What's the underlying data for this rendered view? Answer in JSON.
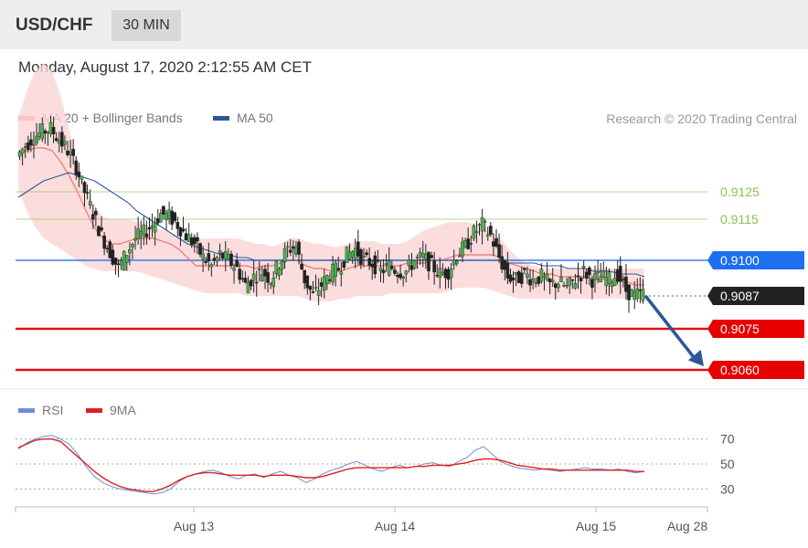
{
  "header": {
    "symbol": "USD/CHF",
    "interval": "30 MIN"
  },
  "datetime": "Monday, August 17, 2020 2:12:55 AM CET",
  "legend_price": [
    {
      "label": "MA 20 + Bollinger Bands",
      "color": "#f08080"
    },
    {
      "label": "MA 50",
      "color": "#2b5797"
    }
  ],
  "credit": "Research © 2020 Trading Central",
  "legend_rsi": [
    {
      "label": "RSI",
      "color": "#6a8fd8"
    },
    {
      "label": "9MA",
      "color": "#e02020"
    }
  ],
  "chart_data": [
    {
      "type": "candlestick",
      "title": "USD/CHF",
      "ylim": [
        0.9055,
        0.9145
      ],
      "grid": false,
      "xticks": [
        "Aug 13",
        "Aug 14",
        "Aug 15",
        "Aug 28"
      ],
      "current_price": "0.9087",
      "levels": [
        {
          "value": 0.9125,
          "label": "0.9125",
          "color": "#8cc152",
          "style": "resistance"
        },
        {
          "value": 0.9115,
          "label": "0.9115",
          "color": "#8cc152",
          "style": "resistance"
        },
        {
          "value": 0.91,
          "label": "0.9100",
          "color": "#3a7bea",
          "style": "pivot"
        },
        {
          "value": 0.9075,
          "label": "0.9075",
          "color": "#e01010",
          "style": "support"
        },
        {
          "value": 0.906,
          "label": "0.9060",
          "color": "#e01010",
          "style": "support"
        }
      ],
      "close_path": [
        0.9138,
        0.9142,
        0.9145,
        0.9147,
        0.9148,
        0.9144,
        0.914,
        0.9134,
        0.9125,
        0.9117,
        0.9109,
        0.9103,
        0.9097,
        0.9103,
        0.9108,
        0.911,
        0.9113,
        0.9117,
        0.9116,
        0.9113,
        0.9109,
        0.9106,
        0.9101,
        0.9098,
        0.9102,
        0.91,
        0.9097,
        0.9091,
        0.9094,
        0.9096,
        0.9093,
        0.9099,
        0.9104,
        0.9105,
        0.9093,
        0.9087,
        0.9091,
        0.9095,
        0.9097,
        0.9102,
        0.9104,
        0.91,
        0.9099,
        0.9096,
        0.9098,
        0.9096,
        0.9096,
        0.91,
        0.9101,
        0.9098,
        0.9095,
        0.9096,
        0.9102,
        0.9105,
        0.911,
        0.9113,
        0.9109,
        0.9101,
        0.9094,
        0.9093,
        0.9095,
        0.9093,
        0.9094,
        0.9091,
        0.9092,
        0.909,
        0.9093,
        0.9096,
        0.9093,
        0.9094,
        0.9093,
        0.9095,
        0.9089,
        0.9087,
        0.9088
      ],
      "ma20": [
        0.9139,
        0.914,
        0.9141,
        0.9141,
        0.914,
        0.9136,
        0.9131,
        0.9125,
        0.9118,
        0.9112,
        0.9108,
        0.9106,
        0.9106,
        0.9107,
        0.9108,
        0.9108,
        0.9108,
        0.9107,
        0.9106,
        0.9104,
        0.9101,
        0.9098,
        0.9098,
        0.9098,
        0.9098,
        0.9098,
        0.9098,
        0.9098,
        0.9097,
        0.9098,
        0.9098,
        0.9099,
        0.91,
        0.91,
        0.9098,
        0.9097,
        0.9097,
        0.9096,
        0.9096,
        0.9097,
        0.9098,
        0.9098,
        0.9098,
        0.9098,
        0.9098,
        0.9098,
        0.9099,
        0.9099,
        0.9099,
        0.91,
        0.91,
        0.9101,
        0.9102,
        0.9102,
        0.9102,
        0.9102,
        0.9102,
        0.9101,
        0.9099,
        0.9098,
        0.9097,
        0.9096,
        0.9095,
        0.9095,
        0.9094,
        0.9094,
        0.9094,
        0.9094,
        0.9093,
        0.9093,
        0.9093,
        0.9093,
        0.9092,
        0.9091,
        0.9091
      ],
      "bb_upper": [
        0.9152,
        0.9162,
        0.9169,
        0.9172,
        0.9169,
        0.916,
        0.9148,
        0.9136,
        0.9126,
        0.912,
        0.9116,
        0.9115,
        0.9115,
        0.9115,
        0.9114,
        0.9113,
        0.9112,
        0.9111,
        0.911,
        0.9109,
        0.9108,
        0.9108,
        0.9108,
        0.9108,
        0.9108,
        0.9108,
        0.9108,
        0.9107,
        0.9106,
        0.9106,
        0.9105,
        0.9106,
        0.9108,
        0.9108,
        0.9107,
        0.9106,
        0.9106,
        0.9105,
        0.9105,
        0.9106,
        0.9107,
        0.9107,
        0.9107,
        0.9106,
        0.9106,
        0.9106,
        0.9107,
        0.9109,
        0.9111,
        0.9112,
        0.9113,
        0.9114,
        0.9114,
        0.9114,
        0.9113,
        0.9112,
        0.911,
        0.9108,
        0.9104,
        0.9101,
        0.9099,
        0.9098,
        0.9097,
        0.9097,
        0.9097,
        0.9097,
        0.9097,
        0.9097,
        0.9097,
        0.9097,
        0.9097,
        0.9097,
        0.9097,
        0.9097,
        0.9097
      ],
      "bb_lower": [
        0.9126,
        0.9118,
        0.9112,
        0.9108,
        0.9106,
        0.9104,
        0.9102,
        0.91,
        0.9098,
        0.9097,
        0.9096,
        0.9096,
        0.9096,
        0.9096,
        0.9096,
        0.9095,
        0.9094,
        0.9093,
        0.9092,
        0.9091,
        0.909,
        0.9089,
        0.9088,
        0.9088,
        0.9088,
        0.9088,
        0.9088,
        0.9087,
        0.9087,
        0.9087,
        0.9087,
        0.9087,
        0.9087,
        0.9087,
        0.9086,
        0.9085,
        0.9085,
        0.9085,
        0.9086,
        0.9086,
        0.9087,
        0.9087,
        0.9087,
        0.9087,
        0.9088,
        0.9088,
        0.9088,
        0.9088,
        0.9088,
        0.9088,
        0.9088,
        0.9089,
        0.909,
        0.909,
        0.909,
        0.909,
        0.9089,
        0.9088,
        0.9087,
        0.9086,
        0.9086,
        0.9086,
        0.9086,
        0.9086,
        0.9086,
        0.9086,
        0.9086,
        0.9086,
        0.9086,
        0.9086,
        0.9086,
        0.9086,
        0.9086,
        0.9086,
        0.9086
      ],
      "ma50": [
        0.9123,
        0.9125,
        0.9127,
        0.9129,
        0.913,
        0.9131,
        0.9132,
        0.9131,
        0.913,
        0.9129,
        0.9127,
        0.9125,
        0.9123,
        0.9121,
        0.9118,
        0.9116,
        0.9114,
        0.9112,
        0.911,
        0.9108,
        0.9106,
        0.9105,
        0.9104,
        0.9103,
        0.9102,
        0.9102,
        0.9101,
        0.9101,
        0.91,
        0.91,
        0.91,
        0.91,
        0.91,
        0.91,
        0.91,
        0.91,
        0.91,
        0.91,
        0.91,
        0.91,
        0.91,
        0.91,
        0.91,
        0.91,
        0.91,
        0.91,
        0.91,
        0.91,
        0.91,
        0.91,
        0.91,
        0.91,
        0.91,
        0.91,
        0.91,
        0.91,
        0.91,
        0.91,
        0.9099,
        0.9099,
        0.9099,
        0.9099,
        0.9098,
        0.9098,
        0.9098,
        0.9097,
        0.9097,
        0.9097,
        0.9096,
        0.9096,
        0.9096,
        0.9095,
        0.9095,
        0.9095,
        0.9094
      ],
      "forecast": {
        "from": 0.9087,
        "to": 0.906,
        "direction": "down"
      }
    },
    {
      "type": "line",
      "title": "RSI",
      "ylim": [
        20,
        80
      ],
      "yticks": [
        70,
        50,
        30
      ],
      "series": [
        {
          "name": "RSI",
          "color": "#6a8fd8",
          "values": [
            62,
            67,
            70,
            72,
            73,
            70,
            66,
            58,
            48,
            40,
            35,
            32,
            30,
            29,
            28,
            27,
            26,
            27,
            30,
            36,
            40,
            42,
            44,
            45,
            43,
            40,
            38,
            41,
            42,
            39,
            42,
            44,
            41,
            39,
            35,
            38,
            42,
            45,
            47,
            50,
            52,
            49,
            46,
            44,
            47,
            49,
            47,
            48,
            50,
            51,
            49,
            48,
            52,
            55,
            61,
            64,
            58,
            52,
            49,
            47,
            46,
            45,
            46,
            45,
            44,
            45,
            46,
            47,
            46,
            46,
            45,
            46,
            44,
            43,
            44
          ]
        },
        {
          "name": "9MA",
          "color": "#e02020",
          "values": [
            63,
            66,
            69,
            70,
            70,
            68,
            62,
            56,
            50,
            44,
            39,
            35,
            32,
            30,
            29,
            28,
            28,
            30,
            33,
            37,
            40,
            42,
            43,
            43,
            42,
            41,
            41,
            41,
            41,
            40,
            41,
            41,
            41,
            40,
            39,
            39,
            40,
            42,
            44,
            46,
            47,
            47,
            47,
            47,
            47,
            47,
            47,
            48,
            48,
            49,
            49,
            49,
            50,
            51,
            53,
            54,
            54,
            53,
            51,
            49,
            48,
            47,
            46,
            46,
            45,
            45,
            45,
            45,
            45,
            45,
            45,
            45,
            45,
            44,
            44
          ]
        }
      ]
    }
  ]
}
